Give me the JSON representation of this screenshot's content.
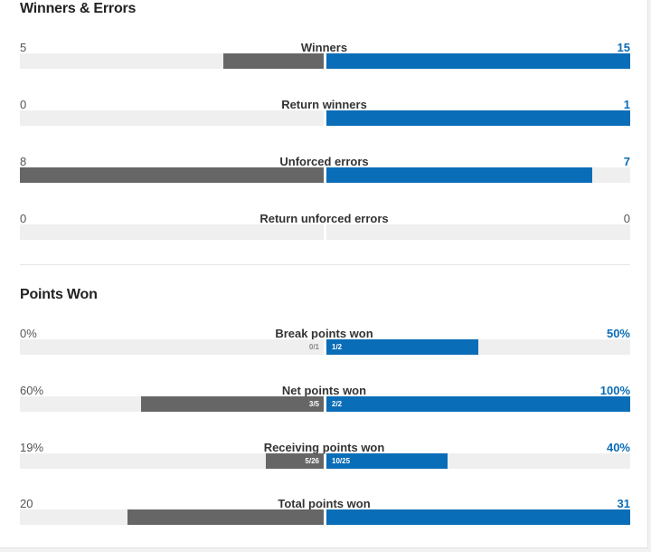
{
  "sections": {
    "winners_errors": {
      "title": "Winners & Errors"
    },
    "points_won": {
      "title": "Points Won"
    }
  },
  "colors": {
    "left_player": "#666666",
    "right_player": "#0a6db7",
    "track": "#efefef"
  },
  "stats": {
    "winners": {
      "label": "Winners",
      "left": "5",
      "right": "15",
      "left_ratio": 0.33,
      "right_ratio": 1.0
    },
    "return_winners": {
      "label": "Return winners",
      "left": "0",
      "right": "1",
      "left_ratio": 0.0,
      "right_ratio": 1.0
    },
    "unforced_errors": {
      "label": "Unforced errors",
      "left": "8",
      "right": "7",
      "left_ratio": 1.0,
      "right_ratio": 0.875
    },
    "return_unforced_errors": {
      "label": "Return unforced errors",
      "left": "0",
      "right": "0",
      "left_ratio": 0.0,
      "right_ratio": 0.0
    },
    "break_points_won": {
      "label": "Break points won",
      "left": "0%",
      "right": "50%",
      "left_frac": "0/1",
      "right_frac": "1/2",
      "left_ratio": 0.0,
      "right_ratio": 0.5
    },
    "net_points_won": {
      "label": "Net points won",
      "left": "60%",
      "right": "100%",
      "left_frac": "3/5",
      "right_frac": "2/2",
      "left_ratio": 0.6,
      "right_ratio": 1.0
    },
    "receiving_points_won": {
      "label": "Receiving points won",
      "left": "19%",
      "right": "40%",
      "left_frac": "5/26",
      "right_frac": "10/25",
      "left_ratio": 0.19,
      "right_ratio": 0.4
    },
    "total_points_won": {
      "label": "Total points won",
      "left": "20",
      "right": "31",
      "left_ratio": 0.645,
      "right_ratio": 1.0
    }
  }
}
